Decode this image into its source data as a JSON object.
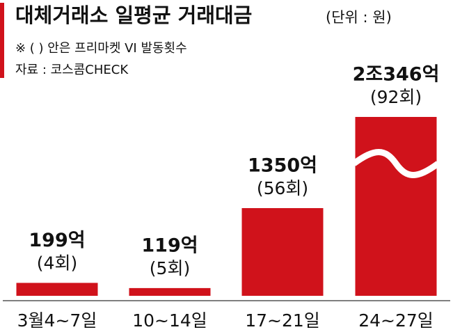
{
  "chart_data": {
    "type": "bar",
    "title": "대체거래소 일평균 거래대금",
    "unit_note": "(단위 : 원)",
    "notes": [
      "※ ( ) 안은 프리마켓 VI 발동횟수",
      "자료 : 코스콤CHECK"
    ],
    "categories": [
      "3월4~7일",
      "10~14일",
      "17~21일",
      "24~27일"
    ],
    "values": [
      199,
      119,
      1350,
      20346
    ],
    "value_labels": [
      "199억",
      "119억",
      "1350억",
      "2조346억"
    ],
    "count_labels": [
      "(4회)",
      "(5회)",
      "(56회)",
      "(92회)"
    ],
    "color": "#d0121b",
    "axis_break": true
  }
}
